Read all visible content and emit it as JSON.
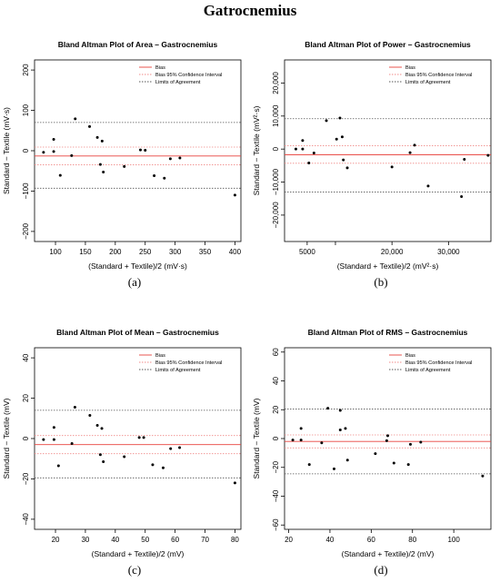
{
  "figure_title": "Gatrocnemius",
  "captions": [
    "(a)",
    "(b)",
    "(c)",
    "(d)"
  ],
  "chart_data": [
    {
      "type": "scatter",
      "title": "Bland Altman Plot of Area – Gastrocnemius",
      "xlabel": "(Standard + Textile)/2 (mV·s)",
      "ylabel": "Standard − Textile (mV·s)",
      "xlim": [
        65,
        410
      ],
      "ylim": [
        -225,
        225
      ],
      "xticks": [
        100,
        150,
        200,
        250,
        300,
        350,
        400
      ],
      "xtick_labels": [
        "100",
        "150",
        "200",
        "250",
        "300",
        "350",
        "400"
      ],
      "yticks": [
        -200,
        -100,
        0,
        100,
        200
      ],
      "ytick_labels": [
        "−200",
        "−100",
        "0",
        "100",
        "200"
      ],
      "bias": -13,
      "bias_ci": [
        -35,
        9
      ],
      "loa": [
        -93,
        70
      ],
      "legend": [
        "Bias",
        "Bias 95% Confidence Interval",
        "Limits of Agreement"
      ],
      "points": [
        [
          80,
          -4
        ],
        [
          97,
          -2
        ],
        [
          97,
          28
        ],
        [
          108,
          -61
        ],
        [
          127,
          -12
        ],
        [
          133,
          79
        ],
        [
          157,
          60
        ],
        [
          170,
          33
        ],
        [
          175,
          -34
        ],
        [
          178,
          24
        ],
        [
          180,
          -53
        ],
        [
          215,
          -39
        ],
        [
          242,
          2
        ],
        [
          250,
          1
        ],
        [
          265,
          -62
        ],
        [
          282,
          -68
        ],
        [
          292,
          -20
        ],
        [
          308,
          -18
        ],
        [
          400,
          -110
        ]
      ]
    },
    {
      "type": "scatter",
      "title": "Bland Altman Plot of Power – Gastrocnemius",
      "xlabel": "(Standard + Textile)/2 (mV²·s)",
      "ylabel": "Standard − Textile (mV²·s)",
      "xlim": [
        1000,
        37500
      ],
      "ylim": [
        -28000,
        27000
      ],
      "xticks": [
        5000,
        20000,
        30000
      ],
      "xtick_labels": [
        "5000",
        "20,000",
        "30,000"
      ],
      "xticks_minor_unlabeled": [
        10000
      ],
      "yticks": [
        -20000,
        -10000,
        0,
        10000,
        20000
      ],
      "ytick_labels": [
        "−20,000",
        "−10,000",
        "0",
        "10,000",
        "20,000"
      ],
      "bias": -1700,
      "bias_ci": [
        -4300,
        1000
      ],
      "loa": [
        -13000,
        9200
      ],
      "legend": [
        "Bias",
        "Bias 95% Confidence Interval",
        "Limits of Agreement"
      ],
      "points": [
        [
          3000,
          0
        ],
        [
          4200,
          0
        ],
        [
          4200,
          2600
        ],
        [
          5300,
          -4200
        ],
        [
          6200,
          -1200
        ],
        [
          8400,
          8600
        ],
        [
          10200,
          3000
        ],
        [
          10800,
          9400
        ],
        [
          11200,
          3700
        ],
        [
          11400,
          -3300
        ],
        [
          12100,
          -5700
        ],
        [
          20000,
          -5400
        ],
        [
          23200,
          -1100
        ],
        [
          24000,
          1200
        ],
        [
          26400,
          -11200
        ],
        [
          32300,
          -14400
        ],
        [
          32800,
          -3100
        ],
        [
          37000,
          -1900
        ]
      ]
    },
    {
      "type": "scatter",
      "title": "Bland Altman Plot of Mean – Gastrocnemius",
      "xlabel": "(Standard + Textile)/2 (mV)",
      "ylabel": "Standard − Textile (mV)",
      "xlim": [
        13,
        82
      ],
      "ylim": [
        -45,
        45
      ],
      "xticks": [
        20,
        30,
        40,
        50,
        60,
        70,
        80
      ],
      "xtick_labels": [
        "20",
        "30",
        "40",
        "50",
        "60",
        "70",
        "80"
      ],
      "yticks": [
        -40,
        -20,
        0,
        20,
        40
      ],
      "ytick_labels": [
        "−40",
        "−20",
        "0",
        "20",
        "40"
      ],
      "bias": -3,
      "bias_ci": [
        -7.5,
        1.5
      ],
      "loa": [
        -19.5,
        14
      ],
      "legend": [
        "Bias",
        "Bias 95% Confidence Interval",
        "Limits of Agreement"
      ],
      "points": [
        [
          16,
          -0.5
        ],
        [
          19.5,
          -0.5
        ],
        [
          19.5,
          5.5
        ],
        [
          21,
          -13.5
        ],
        [
          25.5,
          -2.5
        ],
        [
          26.5,
          15.5
        ],
        [
          31.5,
          11.5
        ],
        [
          34,
          6.5
        ],
        [
          35,
          -8
        ],
        [
          35.5,
          5
        ],
        [
          36,
          -11.5
        ],
        [
          43,
          -9
        ],
        [
          48,
          0.5
        ],
        [
          49.5,
          0.5
        ],
        [
          52.5,
          -13
        ],
        [
          56,
          -14.5
        ],
        [
          58.5,
          -5
        ],
        [
          61.5,
          -4.5
        ],
        [
          80,
          -22
        ]
      ]
    },
    {
      "type": "scatter",
      "title": "Bland Altman Plot of RMS – Gastrocnemius",
      "xlabel": "(Standard + Textile)/2 (mV)",
      "ylabel": "Standard − Textile (mV)",
      "xlim": [
        18,
        118
      ],
      "ylim": [
        -63,
        63
      ],
      "xticks": [
        20,
        40,
        60,
        80,
        100
      ],
      "xtick_labels": [
        "20",
        "40",
        "60",
        "80",
        "100"
      ],
      "yticks": [
        -60,
        -40,
        -20,
        0,
        20,
        40,
        60
      ],
      "ytick_labels": [
        "−60",
        "−40",
        "−20",
        "0",
        "20",
        "40",
        "60"
      ],
      "bias": -2,
      "bias_ci": [
        -6.5,
        2.5
      ],
      "loa": [
        -24.5,
        20.5
      ],
      "legend": [
        "Bias",
        "Bias 95% Confidence Interval",
        "Limits of Agreement"
      ],
      "points": [
        [
          22,
          -1
        ],
        [
          26,
          -1
        ],
        [
          26,
          7
        ],
        [
          30,
          -18
        ],
        [
          36,
          -3
        ],
        [
          39,
          21
        ],
        [
          42,
          -21
        ],
        [
          45,
          19.5
        ],
        [
          45,
          6
        ],
        [
          47.5,
          7
        ],
        [
          48.5,
          -15
        ],
        [
          62,
          -10.5
        ],
        [
          67.5,
          -1.5
        ],
        [
          68,
          2
        ],
        [
          71,
          -17
        ],
        [
          78,
          -18
        ],
        [
          79,
          -4
        ],
        [
          84,
          -2.5
        ],
        [
          114,
          -26
        ]
      ]
    }
  ]
}
